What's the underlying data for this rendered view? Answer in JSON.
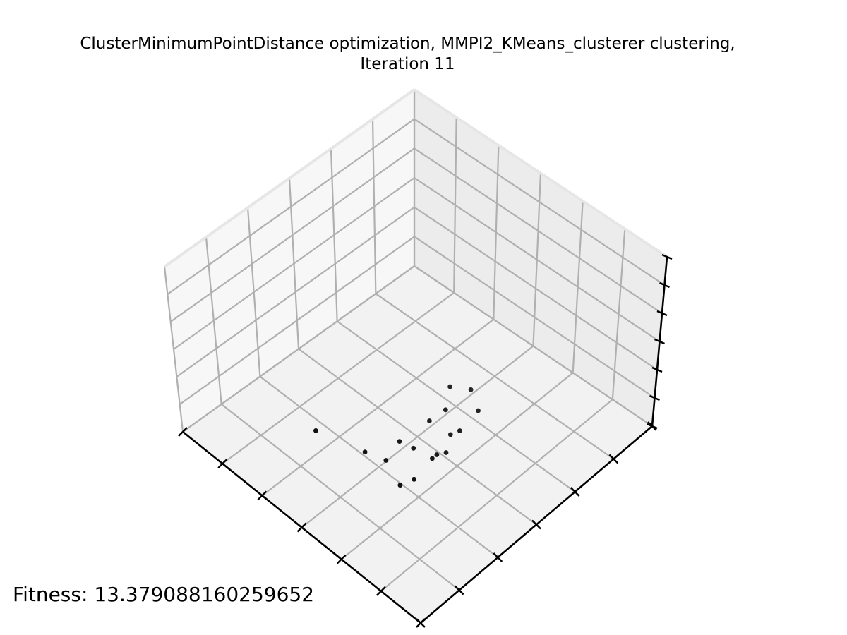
{
  "chart_data": {
    "type": "scatter",
    "title_line1": "ClusterMinimumPointDistance optimization, MMPI2_KMeans_clusterer clustering,",
    "title_line2": "Iteration 11",
    "annotation_label": "Fitness: ",
    "annotation_value": "13.379088160259652",
    "xlabel": "",
    "ylabel": "",
    "zlabel": "",
    "grid": true,
    "tick_labels_shown": false,
    "marker_color": "#000000",
    "pane_colors": [
      "#f2f2f2",
      "#f7f7f7",
      "#ececec"
    ],
    "grid_color": "#b0b0b0",
    "points": [
      {
        "x": 0.53,
        "y": 0.97,
        "z": 0.55
      },
      {
        "x": 0.62,
        "y": 0.85,
        "z": 0.4
      },
      {
        "x": 0.64,
        "y": 0.78,
        "z": 0.3
      },
      {
        "x": 0.68,
        "y": 0.76,
        "z": 0.18
      },
      {
        "x": 0.68,
        "y": 0.7,
        "z": 0.15
      },
      {
        "x": 0.58,
        "y": 0.66,
        "z": 0.22
      },
      {
        "x": 0.6,
        "y": 0.62,
        "z": 0.16
      },
      {
        "x": 0.64,
        "y": 0.58,
        "z": 0.1
      },
      {
        "x": 0.63,
        "y": 0.55,
        "z": 0.08
      },
      {
        "x": 0.63,
        "y": 0.51,
        "z": 0.05
      },
      {
        "x": 0.55,
        "y": 0.5,
        "z": 0.14
      },
      {
        "x": 0.6,
        "y": 0.46,
        "z": 0.07
      },
      {
        "x": 0.6,
        "y": 0.42,
        "z": 0.05
      },
      {
        "x": 0.55,
        "y": 0.43,
        "z": 0.13
      },
      {
        "x": 0.52,
        "y": 0.38,
        "z": 0.18
      },
      {
        "x": 0.58,
        "y": 0.32,
        "z": 0.04
      },
      {
        "x": 0.52,
        "y": 0.29,
        "z": 0.07
      }
    ]
  }
}
